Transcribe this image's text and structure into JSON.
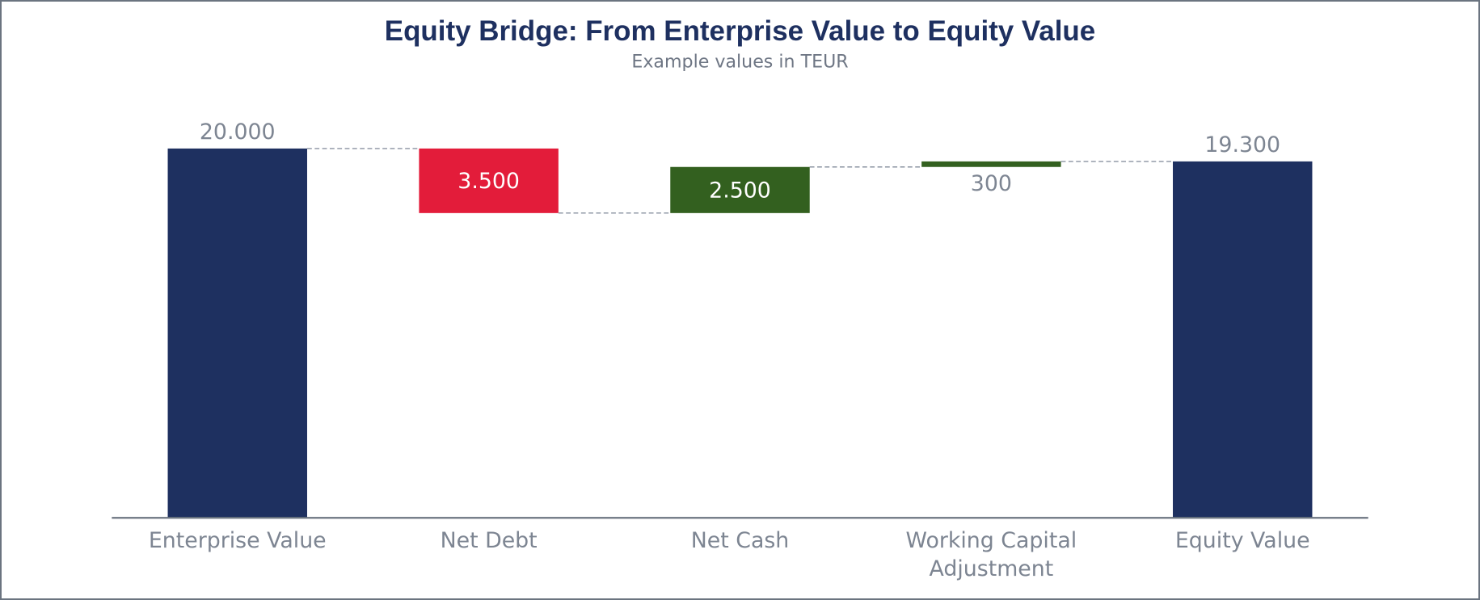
{
  "chart_data": {
    "type": "waterfall",
    "title": "Equity Bridge: From Enterprise Value to Equity Value",
    "subtitle": "Example values in TEUR",
    "categories": [
      "Enterprise Value",
      "Net Debt",
      "Net Cash",
      "Working Capital Adjustment",
      "Equity Value"
    ],
    "category_lines": [
      [
        "Enterprise Value"
      ],
      [
        "Net Debt"
      ],
      [
        "Net Cash"
      ],
      [
        "Working Capital",
        "Adjustment"
      ],
      [
        "Equity Value"
      ]
    ],
    "values": [
      20000,
      -3500,
      2500,
      300,
      19300
    ],
    "kinds": [
      "total",
      "decrease",
      "increase",
      "increase",
      "total"
    ],
    "data_labels": [
      "20.000",
      "3.500",
      "2.500",
      "300",
      "19.300"
    ],
    "label_positions": [
      "above",
      "inside",
      "inside",
      "below",
      "above"
    ],
    "ylim": [
      0,
      20000
    ],
    "grid": false,
    "connectors": true,
    "colors": {
      "total": "#1e3060",
      "decrease": "#e31c3a",
      "increase": "#33601f",
      "connector": "#8a92a0",
      "axis": "#6b7480",
      "title": "#1e3060"
    }
  }
}
